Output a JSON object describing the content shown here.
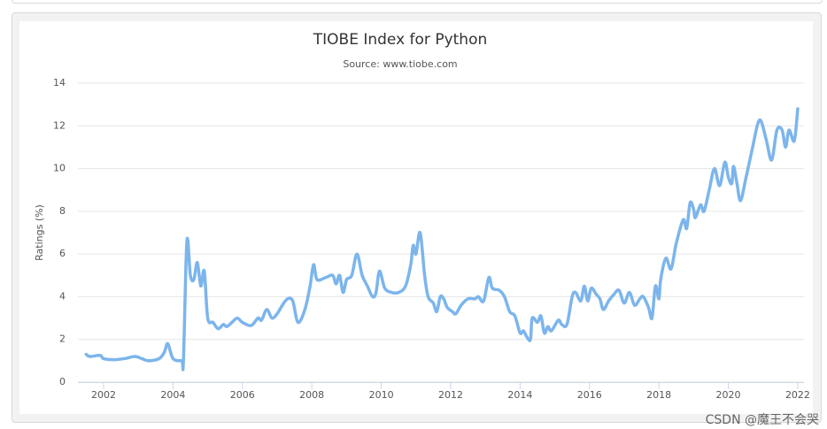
{
  "chart_data": {
    "type": "line",
    "title": "TIOBE Index for Python",
    "subtitle": "Source: www.tiobe.com",
    "y_label": "Ratings (%)",
    "watermark": "CSDN @魔王不会哭",
    "grid": true,
    "xlim": [
      2001.26,
      2022.18
    ],
    "xticks": [
      2002,
      2004,
      2006,
      2008,
      2010,
      2012,
      2014,
      2016,
      2018,
      2020,
      2022
    ],
    "ylim": [
      0,
      14
    ],
    "yticks": [
      0,
      2,
      4,
      6,
      8,
      10,
      12,
      14
    ],
    "x": [
      2001.5,
      2001.6,
      2001.9,
      2002.0,
      2002.3,
      2002.6,
      2002.9,
      2003.1,
      2003.3,
      2003.6,
      2003.75,
      2003.85,
      2004.0,
      2004.25,
      2004.3,
      2004.4,
      2004.5,
      2004.6,
      2004.7,
      2004.8,
      2004.9,
      2005.0,
      2005.15,
      2005.3,
      2005.45,
      2005.55,
      2005.7,
      2005.85,
      2006.0,
      2006.25,
      2006.45,
      2006.55,
      2006.7,
      2006.85,
      2007.0,
      2007.15,
      2007.3,
      2007.45,
      2007.6,
      2007.8,
      2007.95,
      2008.05,
      2008.15,
      2008.4,
      2008.6,
      2008.7,
      2008.8,
      2008.9,
      2009.0,
      2009.15,
      2009.3,
      2009.45,
      2009.6,
      2009.75,
      2009.85,
      2009.95,
      2010.1,
      2010.3,
      2010.5,
      2010.7,
      2010.85,
      2010.92,
      2011.0,
      2011.12,
      2011.25,
      2011.35,
      2011.5,
      2011.6,
      2011.7,
      2011.8,
      2011.9,
      2012.05,
      2012.15,
      2012.3,
      2012.5,
      2012.7,
      2012.8,
      2012.95,
      2013.1,
      2013.2,
      2013.4,
      2013.55,
      2013.7,
      2013.85,
      2014.0,
      2014.1,
      2014.2,
      2014.3,
      2014.35,
      2014.5,
      2014.6,
      2014.7,
      2014.8,
      2014.9,
      2015.1,
      2015.2,
      2015.35,
      2015.5,
      2015.6,
      2015.75,
      2015.85,
      2015.95,
      2016.05,
      2016.2,
      2016.3,
      2016.4,
      2016.55,
      2016.7,
      2016.85,
      2017.0,
      2017.15,
      2017.3,
      2017.45,
      2017.55,
      2017.7,
      2017.8,
      2017.9,
      2018.0,
      2018.05,
      2018.2,
      2018.35,
      2018.5,
      2018.7,
      2018.8,
      2018.9,
      2019.0,
      2019.05,
      2019.2,
      2019.3,
      2019.45,
      2019.6,
      2019.75,
      2019.9,
      2020.0,
      2020.1,
      2020.15,
      2020.25,
      2020.35,
      2020.5,
      2020.7,
      2020.85,
      2020.95,
      2021.1,
      2021.25,
      2021.4,
      2021.55,
      2021.65,
      2021.75,
      2021.9,
      2022.0
    ],
    "series": [
      {
        "color": "#7cb5ec",
        "values": [
          1.3,
          1.2,
          1.25,
          1.1,
          1.05,
          1.1,
          1.2,
          1.1,
          1.0,
          1.1,
          1.4,
          1.8,
          1.1,
          1.0,
          1.0,
          6.6,
          5.0,
          4.8,
          5.6,
          4.5,
          5.2,
          3.0,
          2.8,
          2.5,
          2.7,
          2.6,
          2.8,
          3.0,
          2.8,
          2.65,
          3.0,
          2.9,
          3.4,
          3.0,
          3.2,
          3.6,
          3.9,
          3.8,
          2.8,
          3.4,
          4.5,
          5.5,
          4.8,
          4.9,
          5.0,
          4.6,
          5.0,
          4.2,
          4.8,
          5.0,
          6.0,
          5.0,
          4.5,
          4.0,
          4.2,
          5.2,
          4.4,
          4.2,
          4.2,
          4.5,
          5.5,
          6.4,
          6.0,
          7.0,
          5.0,
          4.0,
          3.7,
          3.3,
          4.0,
          3.9,
          3.5,
          3.3,
          3.2,
          3.6,
          3.9,
          3.9,
          4.0,
          3.8,
          4.9,
          4.4,
          4.3,
          4.0,
          3.3,
          3.1,
          2.3,
          2.4,
          2.1,
          2.0,
          3.0,
          2.8,
          3.1,
          2.3,
          2.6,
          2.4,
          2.9,
          2.7,
          2.7,
          4.0,
          4.2,
          3.8,
          4.5,
          3.8,
          4.4,
          4.1,
          3.9,
          3.4,
          3.8,
          4.1,
          4.3,
          3.7,
          4.2,
          3.6,
          3.9,
          4.0,
          3.5,
          3.0,
          4.5,
          3.9,
          4.8,
          5.8,
          5.3,
          6.5,
          7.6,
          7.2,
          8.4,
          8.1,
          7.7,
          8.3,
          8.0,
          9.0,
          10.0,
          9.2,
          10.3,
          9.6,
          9.3,
          10.1,
          9.3,
          8.5,
          9.5,
          11.0,
          12.1,
          12.2,
          11.3,
          10.4,
          11.8,
          11.8,
          11.0,
          11.8,
          11.3,
          12.8
        ]
      }
    ]
  }
}
